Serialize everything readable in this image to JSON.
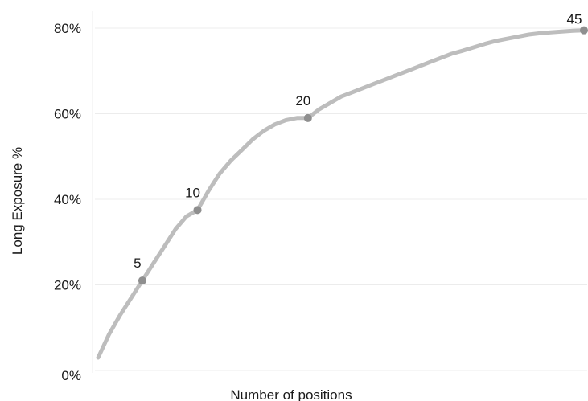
{
  "chart_data": {
    "type": "line",
    "title": "",
    "xlabel": "Number of positions",
    "ylabel": "Long Exposure %",
    "xlim": [
      1,
      45
    ],
    "ylim": [
      0,
      0.8
    ],
    "y_ticks": [
      0,
      0.2,
      0.4,
      0.6,
      0.8
    ],
    "y_tick_labels": [
      "0%",
      "20%",
      "40%",
      "60%",
      "80%"
    ],
    "grid": "horizontal",
    "series": [
      {
        "color": "#bdbdbd",
        "x": [
          1,
          2,
          3,
          4,
          5,
          6,
          7,
          8,
          9,
          10,
          11,
          12,
          13,
          14,
          15,
          16,
          17,
          18,
          19,
          20,
          21,
          22,
          23,
          24,
          25,
          26,
          27,
          28,
          29,
          30,
          31,
          32,
          33,
          34,
          35,
          36,
          37,
          38,
          39,
          40,
          41,
          42,
          43,
          44,
          45
        ],
        "y": [
          0.03,
          0.085,
          0.13,
          0.17,
          0.21,
          0.25,
          0.29,
          0.33,
          0.36,
          0.375,
          0.42,
          0.46,
          0.49,
          0.515,
          0.54,
          0.56,
          0.575,
          0.585,
          0.59,
          0.59,
          0.61,
          0.625,
          0.64,
          0.65,
          0.66,
          0.67,
          0.68,
          0.69,
          0.7,
          0.71,
          0.72,
          0.73,
          0.74,
          0.747,
          0.755,
          0.763,
          0.77,
          0.775,
          0.78,
          0.785,
          0.788,
          0.79,
          0.792,
          0.794,
          0.795
        ]
      }
    ],
    "highlighted_points": [
      {
        "x": 5,
        "y": 0.21,
        "label": "5"
      },
      {
        "x": 10,
        "y": 0.375,
        "label": "10"
      },
      {
        "x": 20,
        "y": 0.59,
        "label": "20"
      },
      {
        "x": 45,
        "y": 0.795,
        "label": "45"
      }
    ],
    "marker_color": "#8f8f8f"
  }
}
